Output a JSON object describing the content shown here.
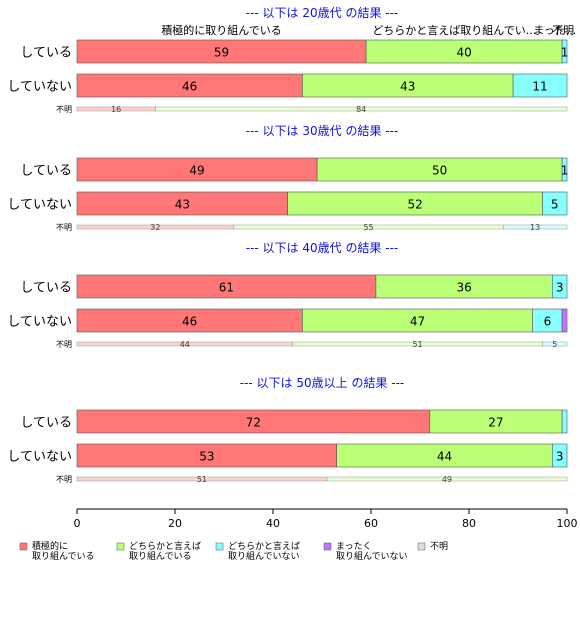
{
  "chart_data": {
    "type": "bar",
    "orientation": "horizontal",
    "stacked": "percent",
    "xlim": [
      0,
      100
    ],
    "x_ticks": [
      "0",
      "20",
      "40",
      "60",
      "80",
      "100"
    ],
    "colors": [
      "#ff7777",
      "#bbff77",
      "#88ffff",
      "#bb77ff",
      "#dddddd"
    ],
    "series_names": [
      "積極的に\n取り組んでいる",
      "どちらかと言えば\n取り組んでいる",
      "どちらかと言えば\n取り組んでいない",
      "まったく\n取り組んでいない",
      "不明"
    ],
    "top_labels": [
      "積極的に取り組んでいる",
      "どちらかと言えば取り組んでい...",
      "まった...",
      "不明"
    ],
    "groups": [
      {
        "title": "--- 以下は 20歳代 の結果 ---",
        "rows": [
          {
            "label": "している",
            "values": [
              59,
              40,
              1,
              0,
              0
            ],
            "labels": [
              "59",
              "40",
              "1",
              "",
              ""
            ]
          },
          {
            "label": "していない",
            "values": [
              46,
              43,
              11,
              0,
              0
            ],
            "labels": [
              "46",
              "43",
              "11",
              "",
              ""
            ]
          }
        ],
        "unknown": {
          "label": "不明",
          "values": [
            16,
            84,
            0,
            0,
            0
          ],
          "labels": [
            "16",
            "84",
            "",
            "",
            ""
          ]
        }
      },
      {
        "title": "--- 以下は 30歳代 の結果 ---",
        "rows": [
          {
            "label": "している",
            "values": [
              49,
              50,
              1,
              0,
              0
            ],
            "labels": [
              "49",
              "50",
              "1",
              "",
              ""
            ]
          },
          {
            "label": "していない",
            "values": [
              43,
              52,
              5,
              0,
              0
            ],
            "labels": [
              "43",
              "52",
              "5",
              "",
              ""
            ]
          }
        ],
        "unknown": {
          "label": "不明",
          "values": [
            32,
            55,
            13,
            0,
            0
          ],
          "labels": [
            "32",
            "55",
            "13",
            "",
            ""
          ]
        }
      },
      {
        "title": "--- 以下は 40歳代 の結果 ---",
        "rows": [
          {
            "label": "している",
            "values": [
              61,
              36,
              3,
              0,
              0
            ],
            "labels": [
              "61",
              "36",
              "3",
              "",
              ""
            ]
          },
          {
            "label": "していない",
            "values": [
              46,
              47,
              6,
              1,
              0
            ],
            "labels": [
              "46",
              "47",
              "6",
              "",
              ""
            ]
          }
        ],
        "unknown": {
          "label": "不明",
          "values": [
            44,
            51,
            5,
            0,
            0
          ],
          "labels": [
            "44",
            "51",
            "5",
            "",
            ""
          ]
        }
      },
      {
        "title": "--- 以下は 50歳以上 の結果 ---",
        "rows": [
          {
            "label": "している",
            "values": [
              72,
              27,
              1,
              0,
              0
            ],
            "labels": [
              "72",
              "27",
              "",
              "",
              ""
            ]
          },
          {
            "label": "していない",
            "values": [
              53,
              44,
              3,
              0,
              0
            ],
            "labels": [
              "53",
              "44",
              "3",
              "",
              ""
            ]
          }
        ],
        "unknown": {
          "label": "不明",
          "values": [
            51,
            49,
            0,
            0,
            0
          ],
          "labels": [
            "51",
            "49",
            "",
            "",
            ""
          ]
        }
      }
    ]
  }
}
